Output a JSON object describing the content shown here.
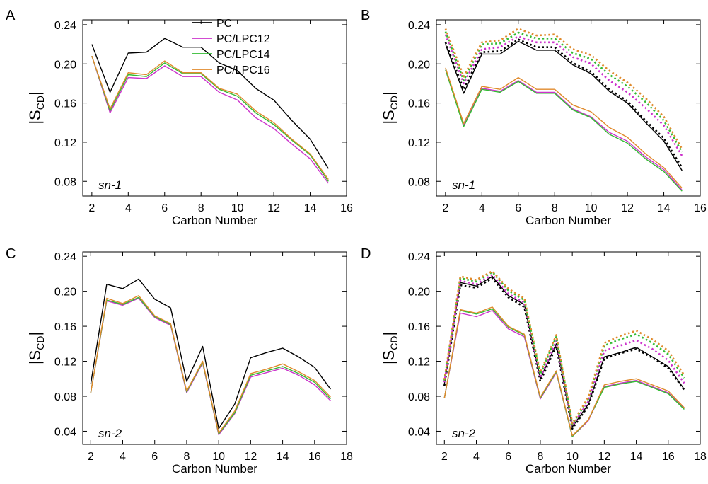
{
  "colors": {
    "PC": "#000000",
    "PC/LPC12": "#cc33cc",
    "PC/LPC14": "#33bb33",
    "PC/LPC16": "#e08a2c"
  },
  "legend": [
    "PC",
    "PC/LPC12",
    "PC/LPC14",
    "PC/LPC16"
  ],
  "ylabel_main": "|S",
  "ylabel_sub": "CD",
  "ylabel_end": "|",
  "chart_data": [
    {
      "type": "line",
      "panel": "A",
      "annotation": "sn-1",
      "xlabel": "Carbon Number",
      "xlim": [
        1.5,
        16
      ],
      "ylim": [
        0.065,
        0.245
      ],
      "xticks": [
        2,
        4,
        6,
        8,
        10,
        12,
        14,
        16
      ],
      "yticks": [
        "0.08",
        "0.12",
        "0.16",
        "0.20",
        "0.24"
      ],
      "legend": true,
      "x": [
        2,
        3,
        4,
        5,
        6,
        7,
        8,
        9,
        10,
        11,
        12,
        13,
        14,
        15
      ],
      "series": [
        {
          "name": "PC",
          "style": "solid",
          "values": [
            0.22,
            0.171,
            0.211,
            0.212,
            0.226,
            0.217,
            0.217,
            0.201,
            0.193,
            0.175,
            0.163,
            0.142,
            0.123,
            0.093
          ]
        },
        {
          "name": "PC/LPC12",
          "style": "solid",
          "values": [
            0.208,
            0.15,
            0.186,
            0.185,
            0.198,
            0.187,
            0.187,
            0.171,
            0.163,
            0.145,
            0.134,
            0.118,
            0.103,
            0.078
          ]
        },
        {
          "name": "PC/LPC14",
          "style": "solid",
          "values": [
            0.208,
            0.152,
            0.189,
            0.187,
            0.201,
            0.19,
            0.19,
            0.174,
            0.167,
            0.15,
            0.138,
            0.122,
            0.107,
            0.08
          ]
        },
        {
          "name": "PC/LPC16",
          "style": "solid",
          "values": [
            0.208,
            0.154,
            0.191,
            0.189,
            0.203,
            0.191,
            0.191,
            0.175,
            0.169,
            0.152,
            0.14,
            0.123,
            0.108,
            0.082
          ]
        }
      ]
    },
    {
      "type": "line",
      "panel": "B",
      "annotation": "sn-1",
      "xlabel": "Carbon Number",
      "xlim": [
        1.5,
        16
      ],
      "ylim": [
        0.065,
        0.245
      ],
      "xticks": [
        2,
        4,
        6,
        8,
        10,
        12,
        14,
        16
      ],
      "yticks": [
        "0.08",
        "0.12",
        "0.16",
        "0.20",
        "0.24"
      ],
      "legend": false,
      "x": [
        2,
        3,
        4,
        5,
        6,
        7,
        8,
        9,
        10,
        11,
        12,
        13,
        14,
        15
      ],
      "series": [
        {
          "name": "PC",
          "style": "solid",
          "values": [
            0.22,
            0.17,
            0.21,
            0.21,
            0.223,
            0.214,
            0.214,
            0.199,
            0.19,
            0.172,
            0.16,
            0.14,
            0.121,
            0.091
          ]
        },
        {
          "name": "PC",
          "style": "dotted",
          "values": [
            0.222,
            0.174,
            0.212,
            0.213,
            0.225,
            0.217,
            0.217,
            0.201,
            0.192,
            0.174,
            0.162,
            0.142,
            0.124,
            0.094
          ]
        },
        {
          "name": "PC/LPC12",
          "style": "dotted",
          "values": [
            0.23,
            0.18,
            0.215,
            0.217,
            0.228,
            0.222,
            0.222,
            0.207,
            0.2,
            0.183,
            0.171,
            0.155,
            0.137,
            0.106
          ]
        },
        {
          "name": "PC/LPC14",
          "style": "dotted",
          "values": [
            0.233,
            0.183,
            0.22,
            0.221,
            0.232,
            0.226,
            0.226,
            0.211,
            0.205,
            0.189,
            0.177,
            0.161,
            0.142,
            0.11
          ]
        },
        {
          "name": "PC/LPC16",
          "style": "dotted",
          "values": [
            0.236,
            0.187,
            0.222,
            0.224,
            0.236,
            0.229,
            0.23,
            0.215,
            0.209,
            0.193,
            0.181,
            0.165,
            0.146,
            0.113
          ]
        },
        {
          "name": "PC/LPC12",
          "style": "solid",
          "values": [
            0.194,
            0.137,
            0.175,
            0.172,
            0.183,
            0.171,
            0.171,
            0.154,
            0.146,
            0.13,
            0.121,
            0.105,
            0.092,
            0.071
          ]
        },
        {
          "name": "PC/LPC14",
          "style": "solid",
          "values": [
            0.194,
            0.136,
            0.174,
            0.171,
            0.182,
            0.17,
            0.17,
            0.153,
            0.145,
            0.128,
            0.119,
            0.103,
            0.09,
            0.07
          ]
        },
        {
          "name": "PC/LPC16",
          "style": "solid",
          "values": [
            0.196,
            0.139,
            0.177,
            0.174,
            0.186,
            0.174,
            0.174,
            0.158,
            0.151,
            0.135,
            0.125,
            0.108,
            0.094,
            0.073
          ]
        }
      ]
    },
    {
      "type": "line",
      "panel": "C",
      "annotation": "sn-2",
      "xlabel": "Carbon Number",
      "xlim": [
        1.5,
        18
      ],
      "ylim": [
        0.025,
        0.245
      ],
      "xticks": [
        2,
        4,
        6,
        8,
        10,
        12,
        14,
        16,
        18
      ],
      "yticks": [
        "0.04",
        "0.08",
        "0.12",
        "0.16",
        "0.20",
        "0.24"
      ],
      "legend": false,
      "x": [
        2,
        3,
        4,
        5,
        6,
        7,
        8,
        9,
        10,
        11,
        12,
        13,
        14,
        15,
        16,
        17
      ],
      "series": [
        {
          "name": "PC",
          "style": "solid",
          "values": [
            0.094,
            0.208,
            0.203,
            0.214,
            0.191,
            0.181,
            0.097,
            0.137,
            0.043,
            0.071,
            0.124,
            0.13,
            0.135,
            0.125,
            0.113,
            0.088
          ]
        },
        {
          "name": "PC/LPC12",
          "style": "solid",
          "values": [
            0.084,
            0.189,
            0.184,
            0.192,
            0.17,
            0.161,
            0.084,
            0.118,
            0.036,
            0.06,
            0.102,
            0.107,
            0.112,
            0.104,
            0.093,
            0.075
          ]
        },
        {
          "name": "PC/LPC14",
          "style": "solid",
          "values": [
            0.084,
            0.19,
            0.185,
            0.193,
            0.171,
            0.162,
            0.085,
            0.119,
            0.037,
            0.061,
            0.104,
            0.109,
            0.114,
            0.106,
            0.096,
            0.077
          ]
        },
        {
          "name": "PC/LPC16",
          "style": "solid",
          "values": [
            0.084,
            0.192,
            0.186,
            0.195,
            0.172,
            0.163,
            0.086,
            0.12,
            0.038,
            0.063,
            0.106,
            0.111,
            0.117,
            0.108,
            0.098,
            0.079
          ]
        }
      ]
    },
    {
      "type": "line",
      "panel": "D",
      "annotation": "sn-2",
      "xlabel": "Carbon Number",
      "xlim": [
        1.5,
        18
      ],
      "ylim": [
        0.025,
        0.245
      ],
      "xticks": [
        2,
        4,
        6,
        8,
        10,
        12,
        14,
        16,
        18
      ],
      "yticks": [
        "0.04",
        "0.08",
        "0.12",
        "0.16",
        "0.20",
        "0.24"
      ],
      "legend": false,
      "x": [
        2,
        3,
        4,
        5,
        6,
        7,
        8,
        9,
        10,
        11,
        12,
        13,
        14,
        15,
        16,
        17
      ],
      "series": [
        {
          "name": "PC",
          "style": "solid",
          "values": [
            0.094,
            0.21,
            0.206,
            0.217,
            0.195,
            0.185,
            0.1,
            0.14,
            0.045,
            0.071,
            0.125,
            0.13,
            0.136,
            0.125,
            0.114,
            0.088
          ]
        },
        {
          "name": "PC",
          "style": "dotted",
          "values": [
            0.092,
            0.207,
            0.204,
            0.215,
            0.193,
            0.182,
            0.097,
            0.137,
            0.043,
            0.069,
            0.123,
            0.129,
            0.134,
            0.124,
            0.112,
            0.087
          ]
        },
        {
          "name": "PC/LPC12",
          "style": "dotted",
          "values": [
            0.096,
            0.212,
            0.208,
            0.219,
            0.197,
            0.187,
            0.101,
            0.143,
            0.046,
            0.074,
            0.132,
            0.138,
            0.144,
            0.134,
            0.121,
            0.095
          ]
        },
        {
          "name": "PC/LPC14",
          "style": "dotted",
          "values": [
            0.098,
            0.215,
            0.211,
            0.222,
            0.201,
            0.19,
            0.105,
            0.148,
            0.048,
            0.077,
            0.138,
            0.145,
            0.151,
            0.141,
            0.128,
            0.101
          ]
        },
        {
          "name": "PC/LPC16",
          "style": "dotted",
          "values": [
            0.099,
            0.217,
            0.213,
            0.223,
            0.203,
            0.192,
            0.107,
            0.15,
            0.049,
            0.079,
            0.141,
            0.149,
            0.155,
            0.145,
            0.132,
            0.104
          ]
        },
        {
          "name": "PC/LPC12",
          "style": "solid",
          "values": [
            0.078,
            0.175,
            0.171,
            0.178,
            0.157,
            0.148,
            0.077,
            0.107,
            0.034,
            0.052,
            0.091,
            0.095,
            0.098,
            0.091,
            0.084,
            0.066
          ]
        },
        {
          "name": "PC/LPC14",
          "style": "solid",
          "values": [
            0.078,
            0.178,
            0.174,
            0.18,
            0.159,
            0.15,
            0.078,
            0.108,
            0.034,
            0.053,
            0.09,
            0.094,
            0.097,
            0.09,
            0.083,
            0.065
          ]
        },
        {
          "name": "PC/LPC16",
          "style": "solid",
          "values": [
            0.078,
            0.179,
            0.175,
            0.182,
            0.16,
            0.151,
            0.079,
            0.109,
            0.035,
            0.053,
            0.093,
            0.097,
            0.1,
            0.093,
            0.086,
            0.067
          ]
        }
      ]
    }
  ]
}
